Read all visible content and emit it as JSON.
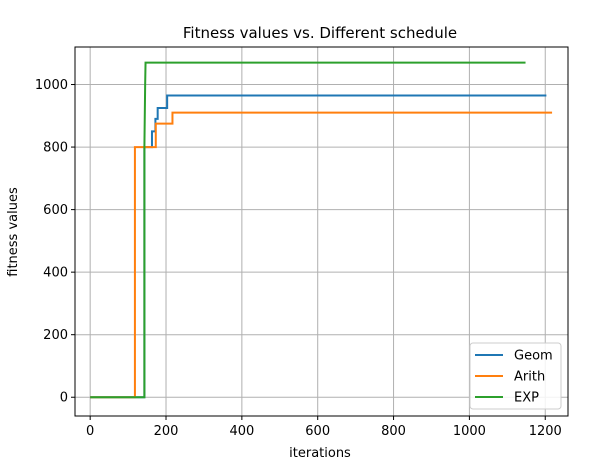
{
  "chart_data": {
    "type": "line",
    "title": "Fitness values  vs. Different schedule",
    "xlabel": "iterations",
    "ylabel": "fitness values",
    "xlim": [
      -40,
      1260
    ],
    "ylim": [
      -60,
      1120
    ],
    "xticks": [
      0,
      200,
      400,
      600,
      800,
      1000,
      1200
    ],
    "yticks": [
      0,
      200,
      400,
      600,
      800,
      1000
    ],
    "grid": true,
    "legend_position": "lower-right",
    "series": [
      {
        "name": "Geom",
        "color": "#1f77b4",
        "points": [
          [
            0,
            0
          ],
          [
            143,
            0
          ],
          [
            143,
            800
          ],
          [
            163,
            800
          ],
          [
            163,
            850
          ],
          [
            172,
            850
          ],
          [
            172,
            890
          ],
          [
            178,
            890
          ],
          [
            178,
            925
          ],
          [
            203,
            925
          ],
          [
            203,
            965
          ],
          [
            1203,
            965
          ]
        ]
      },
      {
        "name": "Arith",
        "color": "#ff7f0e",
        "points": [
          [
            0,
            0
          ],
          [
            118,
            0
          ],
          [
            118,
            800
          ],
          [
            173,
            800
          ],
          [
            173,
            875
          ],
          [
            217,
            875
          ],
          [
            217,
            910
          ],
          [
            1218,
            910
          ]
        ]
      },
      {
        "name": "EXP",
        "color": "#2ca02c",
        "points": [
          [
            0,
            0
          ],
          [
            143,
            0
          ],
          [
            143,
            800
          ],
          [
            145,
            1000
          ],
          [
            146,
            1070
          ],
          [
            1148,
            1070
          ]
        ]
      }
    ]
  }
}
